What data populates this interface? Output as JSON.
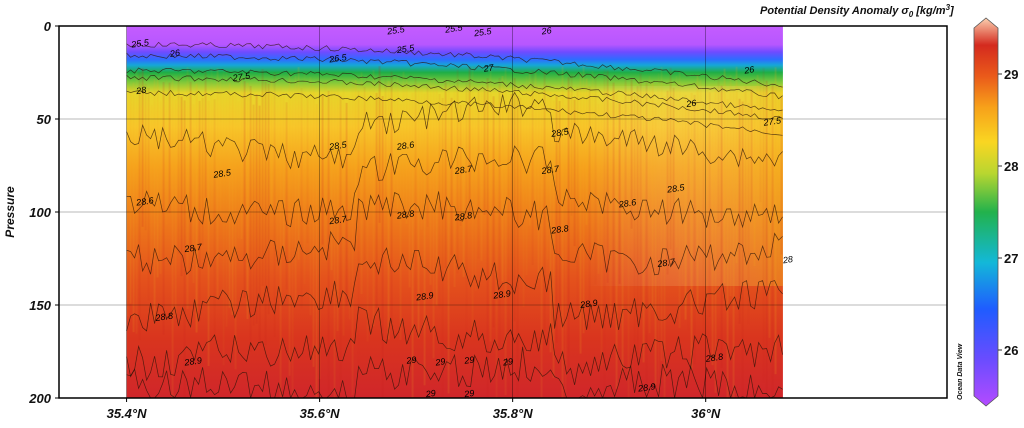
{
  "chart_data": {
    "type": "heatmap",
    "title": "Potential Density Anomaly σ₀ [kg/m³]",
    "title_parts": {
      "main": "Potential Density Anomaly σ",
      "sub": "0",
      "unit_open": " [kg/m",
      "sup": "3",
      "unit_close": "]"
    },
    "ylabel": "Pressure",
    "xlabel": "",
    "x_range": [
      35.33,
      36.25
    ],
    "y_range": [
      0,
      200
    ],
    "y_inverted": true,
    "x_ticks": [
      35.4,
      35.6,
      35.8,
      36.0
    ],
    "x_tick_labels": [
      "35.4°N",
      "35.6°N",
      "35.8°N",
      "36°N"
    ],
    "y_ticks": [
      0,
      50,
      100,
      150,
      200
    ],
    "y_tick_labels": [
      "0",
      "50",
      "100",
      "150",
      "200"
    ],
    "grid": true,
    "data_x_extent": [
      35.4,
      36.08
    ],
    "colorbar": {
      "range": [
        25.5,
        29.5
      ],
      "ticks": [
        26,
        27,
        28,
        29
      ],
      "tick_labels": [
        "26",
        "27",
        "28",
        "29"
      ]
    },
    "isopycnal_depths": [
      {
        "sigma": 25.5,
        "depth": 10
      },
      {
        "sigma": 26,
        "depth": 16
      },
      {
        "sigma": 27,
        "depth": 24
      },
      {
        "sigma": 27.5,
        "depth": 28
      },
      {
        "sigma": 28,
        "depth": 36
      },
      {
        "sigma": 28.5,
        "depth": 65
      },
      {
        "sigma": 28.6,
        "depth": 95
      },
      {
        "sigma": 28.7,
        "depth": 120
      },
      {
        "sigma": 28.8,
        "depth": 150
      },
      {
        "sigma": 28.9,
        "depth": 180
      },
      {
        "sigma": 29,
        "depth": 198
      }
    ],
    "contour_labels": [
      {
        "text": "25.5",
        "x": 35.405,
        "y": 10
      },
      {
        "text": "26",
        "x": 35.445,
        "y": 15
      },
      {
        "text": "27.5",
        "x": 35.51,
        "y": 28
      },
      {
        "text": "28",
        "x": 35.41,
        "y": 35
      },
      {
        "text": "26.5",
        "x": 35.61,
        "y": 18
      },
      {
        "text": "25.5",
        "x": 35.68,
        "y": 13
      },
      {
        "text": "25.5",
        "x": 35.67,
        "y": 3
      },
      {
        "text": "25.5",
        "x": 35.73,
        "y": 2
      },
      {
        "text": "25.5",
        "x": 35.76,
        "y": 4
      },
      {
        "text": "27",
        "x": 35.77,
        "y": 23
      },
      {
        "text": "26",
        "x": 35.83,
        "y": 3
      },
      {
        "text": "26",
        "x": 36.04,
        "y": 24
      },
      {
        "text": "26",
        "x": 35.98,
        "y": 42
      },
      {
        "text": "27.5",
        "x": 36.06,
        "y": 52
      },
      {
        "text": "28.5",
        "x": 35.61,
        "y": 65
      },
      {
        "text": "28.5",
        "x": 35.49,
        "y": 80
      },
      {
        "text": "28.6",
        "x": 35.68,
        "y": 65
      },
      {
        "text": "28.5",
        "x": 35.84,
        "y": 58
      },
      {
        "text": "28.7",
        "x": 35.74,
        "y": 78
      },
      {
        "text": "28.7",
        "x": 35.83,
        "y": 78
      },
      {
        "text": "28.5",
        "x": 35.96,
        "y": 88
      },
      {
        "text": "28.6",
        "x": 35.41,
        "y": 95
      },
      {
        "text": "28.6",
        "x": 35.91,
        "y": 96
      },
      {
        "text": "28.8",
        "x": 35.68,
        "y": 102
      },
      {
        "text": "28.8",
        "x": 35.74,
        "y": 103
      },
      {
        "text": "28.7",
        "x": 35.61,
        "y": 105
      },
      {
        "text": "28.8",
        "x": 35.84,
        "y": 110
      },
      {
        "text": "28.7",
        "x": 35.46,
        "y": 120
      },
      {
        "text": "28.7",
        "x": 35.95,
        "y": 128
      },
      {
        "text": "28",
        "x": 36.08,
        "y": 126
      },
      {
        "text": "28.9",
        "x": 35.7,
        "y": 146
      },
      {
        "text": "28.9",
        "x": 35.78,
        "y": 145
      },
      {
        "text": "28.9",
        "x": 35.87,
        "y": 150
      },
      {
        "text": "28.8",
        "x": 35.43,
        "y": 157
      },
      {
        "text": "29",
        "x": 35.69,
        "y": 180
      },
      {
        "text": "29",
        "x": 35.72,
        "y": 181
      },
      {
        "text": "29",
        "x": 35.75,
        "y": 180
      },
      {
        "text": "29",
        "x": 35.79,
        "y": 181
      },
      {
        "text": "28.9",
        "x": 35.46,
        "y": 181
      },
      {
        "text": "28.8",
        "x": 36.0,
        "y": 179
      },
      {
        "text": "28.9",
        "x": 35.93,
        "y": 195
      },
      {
        "text": "29",
        "x": 35.71,
        "y": 198
      },
      {
        "text": "29",
        "x": 35.75,
        "y": 198
      }
    ],
    "watermark": "Ocean Data View"
  }
}
